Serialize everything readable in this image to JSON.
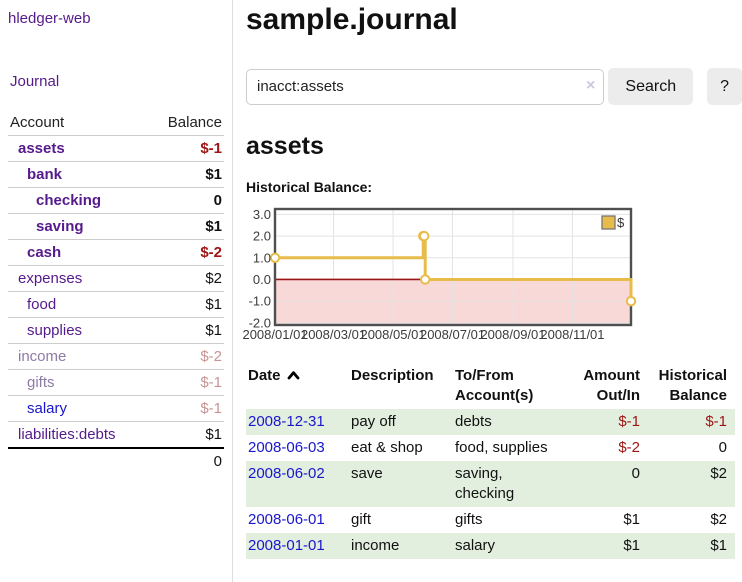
{
  "sidebar": {
    "brand": "hledger-web",
    "nav": {
      "journal": "Journal"
    },
    "table": {
      "account_header": "Account",
      "balance_header": "Balance",
      "accounts": [
        {
          "name": "assets",
          "balance": "$-1",
          "depth": 0,
          "name_style": "purple-bold",
          "balance_style": "neg-bold"
        },
        {
          "name": "bank",
          "balance": "$1",
          "depth": 1,
          "name_style": "purple-bold",
          "balance_style": "num-bold"
        },
        {
          "name": "checking",
          "balance": "0",
          "depth": 2,
          "name_style": "purple-bold",
          "balance_style": "num-bold"
        },
        {
          "name": "saving",
          "balance": "$1",
          "depth": 2,
          "name_style": "purple-bold",
          "balance_style": "num-bold"
        },
        {
          "name": "cash",
          "balance": "$-2",
          "depth": 1,
          "name_style": "purple-bold",
          "balance_style": "neg-bold"
        },
        {
          "name": "expenses",
          "balance": "$2",
          "depth": 0,
          "name_style": "purple",
          "balance_style": "num"
        },
        {
          "name": "food",
          "balance": "$1",
          "depth": 1,
          "name_style": "purple",
          "balance_style": "num"
        },
        {
          "name": "supplies",
          "balance": "$1",
          "depth": 1,
          "name_style": "purple",
          "balance_style": "num"
        },
        {
          "name": "income",
          "balance": "$-2",
          "depth": 0,
          "name_style": "purple-dim",
          "balance_style": "neg-dim"
        },
        {
          "name": "gifts",
          "balance": "$-1",
          "depth": 1,
          "name_style": "purple-dim",
          "balance_style": "neg-dim"
        },
        {
          "name": "salary",
          "balance": "$-1",
          "depth": 1,
          "name_style": "blue",
          "balance_style": "neg-dim"
        },
        {
          "name": "liabilities:debts",
          "balance": "$1",
          "depth": 0,
          "name_style": "purple",
          "balance_style": "num"
        }
      ],
      "total": "0"
    }
  },
  "main": {
    "title": "sample.journal",
    "search": {
      "value": "inacct:assets",
      "clear_icon": "×",
      "search_button": "Search",
      "help_button": "?"
    },
    "account_title": "assets",
    "section_label": "Historical Balance:"
  },
  "chart_data": {
    "type": "line",
    "step": true,
    "title": "Historical Balance",
    "legend": [
      {
        "label": "$"
      }
    ],
    "x_start": "2008-01-01",
    "x_end": "2008-12-31",
    "x_ticks": [
      "2008/01/01",
      "2008/03/01",
      "2008/05/01",
      "2008/07/01",
      "2008/09/01",
      "2008/11/01"
    ],
    "y_ticks": [
      "3.0",
      "2.0",
      "1.0",
      "0.0",
      "-1.0",
      "-2.0"
    ],
    "ylim": [
      -2.1,
      3.25
    ],
    "series": [
      {
        "name": "$",
        "points": [
          {
            "x": "2008-01-01",
            "y": 1
          },
          {
            "x": "2008-06-01",
            "y": 2
          },
          {
            "x": "2008-06-02",
            "y": 2
          },
          {
            "x": "2008-06-03",
            "y": 0
          },
          {
            "x": "2008-12-31",
            "y": -1
          }
        ]
      }
    ],
    "colors": {
      "line": "#e8bc4a",
      "marker_fill": "#ffffff",
      "negative_region": "#f9d8d8",
      "zero_line": "#9c1515",
      "grid": "#e3e3e3",
      "border": "#4f4f4f",
      "tick_text": "#3c3c3c",
      "legend_border": "#777777"
    }
  },
  "register": {
    "headers": {
      "date": "Date",
      "description": "Description",
      "accounts": "To/From Account(s)",
      "amount": "Amount Out/In",
      "balance": "Historical Balance"
    },
    "rows": [
      {
        "date": "2008-12-31",
        "description": "pay off",
        "accounts": "debts",
        "amount": "$-1",
        "amount_neg": true,
        "balance": "$-1",
        "balance_neg": true
      },
      {
        "date": "2008-06-03",
        "description": "eat & shop",
        "accounts": "food, supplies",
        "amount": "$-2",
        "amount_neg": true,
        "balance": "0",
        "balance_neg": false
      },
      {
        "date": "2008-06-02",
        "description": "save",
        "accounts": "saving, checking",
        "amount": "0",
        "amount_neg": false,
        "balance": "$2",
        "balance_neg": false
      },
      {
        "date": "2008-06-01",
        "description": "gift",
        "accounts": "gifts",
        "amount": "$1",
        "amount_neg": false,
        "balance": "$2",
        "balance_neg": false
      },
      {
        "date": "2008-01-01",
        "description": "income",
        "accounts": "salary",
        "amount": "$1",
        "amount_neg": false,
        "balance": "$1",
        "balance_neg": false
      }
    ]
  }
}
